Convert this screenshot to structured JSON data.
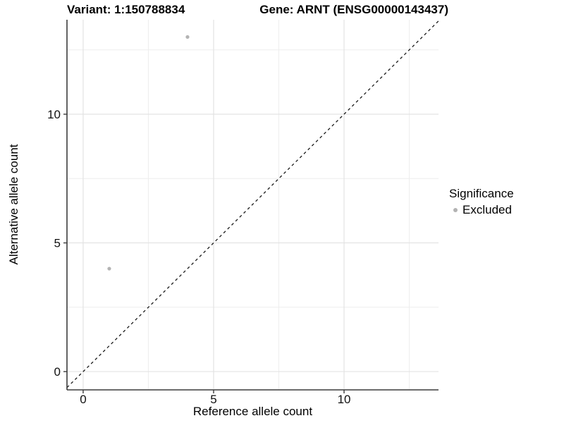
{
  "header": {
    "variant_title": "Variant: 1:150788834",
    "gene_title": "Gene: ARNT (ENSG00000143437)"
  },
  "legend": {
    "title": "Significance",
    "entries": [
      {
        "label": "Excluded",
        "color": "#b3b3b3"
      }
    ]
  },
  "chart_data": {
    "type": "scatter",
    "title": "Variant: 1:150788834   Gene: ARNT (ENSG00000143437)",
    "xlabel": "Reference allele count",
    "ylabel": "Alternative allele count",
    "xlim": [
      -0.62,
      13.62
    ],
    "ylim": [
      -0.71,
      13.67
    ],
    "x_ticks": [
      0,
      5,
      10
    ],
    "x_tick_labels": [
      "0",
      "5",
      "10"
    ],
    "y_ticks": [
      0,
      5,
      10
    ],
    "y_tick_labels": [
      "0",
      "5",
      "10"
    ],
    "minor_ticks_x": [
      2.5,
      7.5,
      12.5
    ],
    "minor_ticks_y": [
      2.5,
      7.5,
      12.5
    ],
    "grid": true,
    "legend_position": "right",
    "series": [
      {
        "name": "Excluded",
        "color": "#b3b3b3",
        "points": [
          {
            "x": 4,
            "y": 13
          },
          {
            "x": 1,
            "y": 4
          }
        ]
      }
    ],
    "reference_line": {
      "type": "identity",
      "slope": 1,
      "intercept": 0,
      "style": "dashed",
      "color": "#1a1a1a"
    },
    "colors": {
      "background": "#ffffff",
      "grid_major": "#e3e3e3",
      "grid_minor": "#eeeeee",
      "axis_line": "#3c3c3c",
      "tick_text": "#111111",
      "point": "#b3b3b3"
    }
  }
}
